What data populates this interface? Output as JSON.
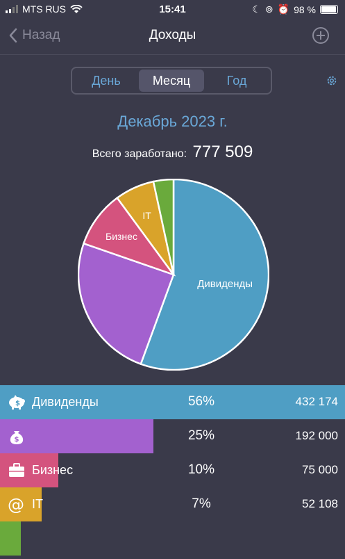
{
  "status_bar": {
    "carrier": "MTS RUS",
    "time": "15:41",
    "battery": "98 %"
  },
  "nav": {
    "back_label": "Назад",
    "title": "Доходы"
  },
  "segments": [
    {
      "label": "День",
      "active": false
    },
    {
      "label": "Месяц",
      "active": true
    },
    {
      "label": "Год",
      "active": false
    }
  ],
  "period": "Декабрь 2023 г.",
  "total": {
    "label": "Всего заработано:",
    "value": "777 509"
  },
  "chart_data": {
    "type": "pie",
    "slices": [
      {
        "label": "Дивиденды",
        "percent": 55.6,
        "color": "#4f9ec4"
      },
      {
        "label": "",
        "percent": 24.7,
        "color": "#a361cf"
      },
      {
        "label": "Бизнес",
        "percent": 9.6,
        "color": "#d4537e"
      },
      {
        "label": "IT",
        "percent": 6.7,
        "color": "#d9a32a"
      },
      {
        "label": "",
        "percent": 3.4,
        "color": "#6aaa3c"
      }
    ]
  },
  "rows": [
    {
      "name": "Дивиденды",
      "percent": "56%",
      "amount": "432 174",
      "bar_fraction": 1.0,
      "color": "#4f9ec4",
      "icon": "piggy-bank-icon"
    },
    {
      "name": "",
      "percent": "25%",
      "amount": "192 000",
      "bar_fraction": 0.445,
      "color": "#a361cf",
      "icon": "money-bag-icon"
    },
    {
      "name": "Бизнес",
      "percent": "10%",
      "amount": "75 000",
      "bar_fraction": 0.17,
      "color": "#d4537e",
      "icon": "briefcase-icon"
    },
    {
      "name": "IT",
      "percent": "7%",
      "amount": "52 108",
      "bar_fraction": 0.12,
      "color": "#d9a32a",
      "icon": "at-sign-icon"
    },
    {
      "name": "",
      "percent": "",
      "amount": "",
      "bar_fraction": 0.06,
      "color": "#6aaa3c",
      "icon": ""
    }
  ]
}
